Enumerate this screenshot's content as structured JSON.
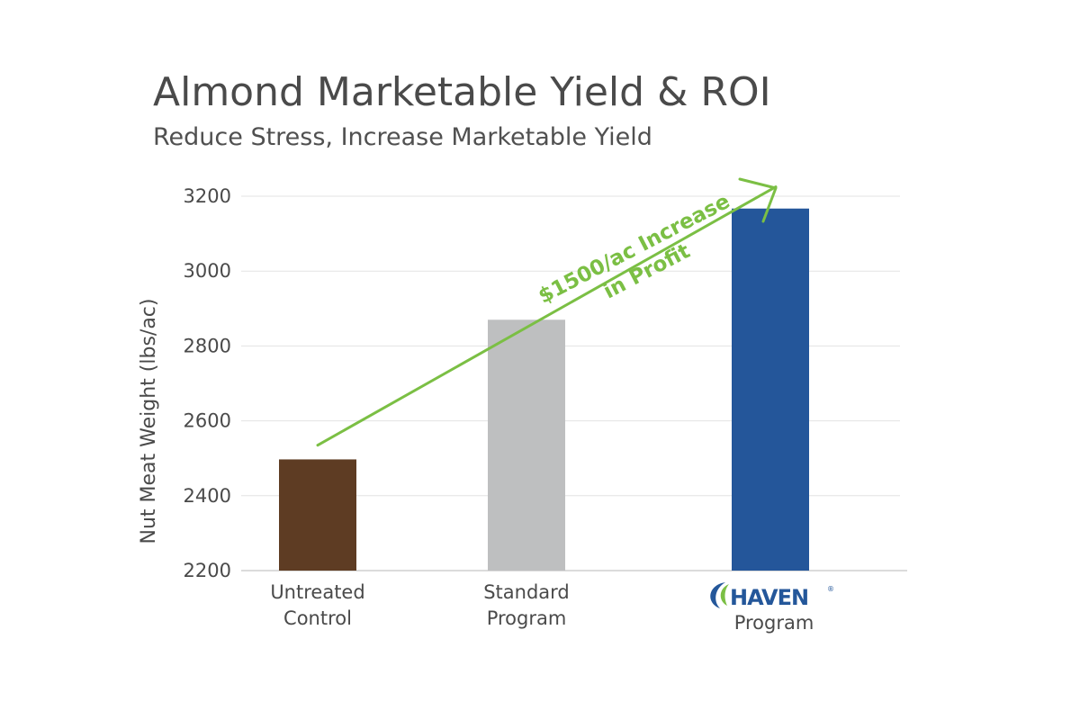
{
  "chart_data": {
    "type": "bar",
    "title": "Almond  Marketable Yield & ROI",
    "subtitle": "Reduce Stress, Increase Marketable Yield",
    "ylabel": "Nut Meat Weight (lbs/ac)",
    "xlabel": "",
    "ylim": [
      2200,
      3200
    ],
    "yticks": [
      2200,
      2400,
      2600,
      2800,
      3000,
      3200
    ],
    "grid": true,
    "categories": [
      {
        "line1": "Untreated",
        "line2": "Control"
      },
      {
        "line1": "Standard",
        "line2": "Program"
      },
      {
        "logo": "HAVEN",
        "logo_mark": "®",
        "line2": "Program"
      }
    ],
    "values": [
      2497,
      2870,
      3167
    ],
    "colors": [
      "#5e3c23",
      "#bebfc0",
      "#24569a"
    ],
    "annotation": {
      "line1": "$1500/ac Increase",
      "line2": "in Profit",
      "color": "#7bbf44",
      "arrow_from": {
        "category": 0,
        "value": 2535
      },
      "arrow_to": {
        "category": 2,
        "value": 3225
      }
    },
    "logo_colors": {
      "text": "#24579a",
      "leaf_green": "#7bbf44",
      "leaf_blue": "#24579a"
    }
  }
}
